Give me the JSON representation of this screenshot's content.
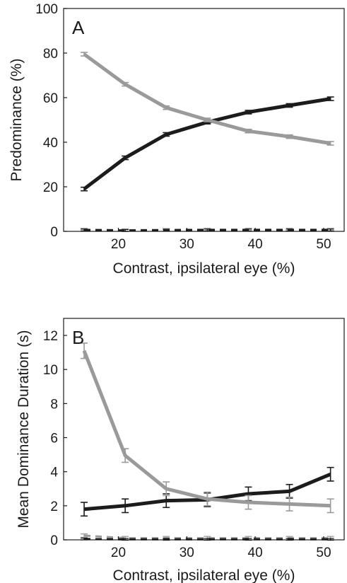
{
  "chart_data": [
    {
      "type": "line",
      "panel_label": "A",
      "xlabel": "Contrast, ipsilateral eye  (%)",
      "ylabel": "Predominance (%)",
      "xlim": [
        12,
        53
      ],
      "ylim": [
        0,
        100
      ],
      "x_ticks": [
        20,
        30,
        40,
        50
      ],
      "y_ticks": [
        0,
        20,
        40,
        60,
        80,
        100
      ],
      "x": [
        15,
        21,
        27,
        33,
        39,
        45,
        51
      ],
      "series": [
        {
          "color": "#1c1c1c",
          "style": "solid",
          "values": [
            19,
            33,
            43.5,
            49,
            53.5,
            56.5,
            59.5
          ],
          "errors": [
            0.8,
            0.8,
            0.8,
            0.8,
            0.8,
            0.8,
            0.8
          ]
        },
        {
          "color": "#9a9a9a",
          "style": "solid",
          "values": [
            79.5,
            66,
            55.5,
            50,
            45,
            42.5,
            39.5
          ],
          "errors": [
            0.8,
            0.8,
            0.8,
            0.8,
            0.8,
            0.8,
            0.8
          ]
        },
        {
          "color": "#9a9a9a",
          "style": "dashed",
          "values": [
            0.8,
            0.5,
            0.7,
            0.8,
            0.8,
            0.8,
            0.8
          ],
          "errors": [
            0.6,
            0.6,
            0.6,
            0.6,
            0.6,
            0.6,
            0.6
          ]
        },
        {
          "color": "#1c1c1c",
          "style": "dashed",
          "values": [
            0.6,
            0.4,
            0.5,
            0.6,
            0.6,
            0.6,
            0.6
          ],
          "errors": [
            0.4,
            0.4,
            0.4,
            0.4,
            0.4,
            0.4,
            0.4
          ]
        }
      ]
    },
    {
      "type": "line",
      "panel_label": "B",
      "xlabel": "Contrast, ipsilateral eye (%)",
      "ylabel": "Mean Dominance Duration (s)",
      "xlim": [
        12,
        53
      ],
      "ylim": [
        0,
        13
      ],
      "x_ticks": [
        20,
        30,
        40,
        50
      ],
      "y_ticks": [
        0,
        2,
        4,
        6,
        8,
        10,
        12
      ],
      "x": [
        15,
        21,
        27,
        33,
        39,
        45,
        51
      ],
      "series": [
        {
          "color": "#1c1c1c",
          "style": "solid",
          "values": [
            1.8,
            2.0,
            2.3,
            2.35,
            2.7,
            2.85,
            3.85
          ],
          "errors": [
            0.4,
            0.4,
            0.4,
            0.4,
            0.4,
            0.4,
            0.4
          ]
        },
        {
          "color": "#9a9a9a",
          "style": "solid",
          "values": [
            11.1,
            4.95,
            3.0,
            2.4,
            2.2,
            2.1,
            2.0
          ],
          "errors": [
            0.45,
            0.4,
            0.4,
            0.4,
            0.4,
            0.4,
            0.4
          ]
        },
        {
          "color": "#9a9a9a",
          "style": "dashed",
          "values": [
            0.25,
            0.1,
            0.1,
            0.1,
            0.1,
            0.1,
            0.1
          ],
          "errors": [
            0.1,
            0.1,
            0.1,
            0.1,
            0.1,
            0.1,
            0.1
          ]
        },
        {
          "color": "#1c1c1c",
          "style": "dashed",
          "values": [
            0.05,
            0.03,
            0.03,
            0.03,
            0.03,
            0.03,
            0.03
          ],
          "errors": [
            0.05,
            0.05,
            0.05,
            0.05,
            0.05,
            0.05,
            0.05
          ]
        }
      ]
    }
  ]
}
